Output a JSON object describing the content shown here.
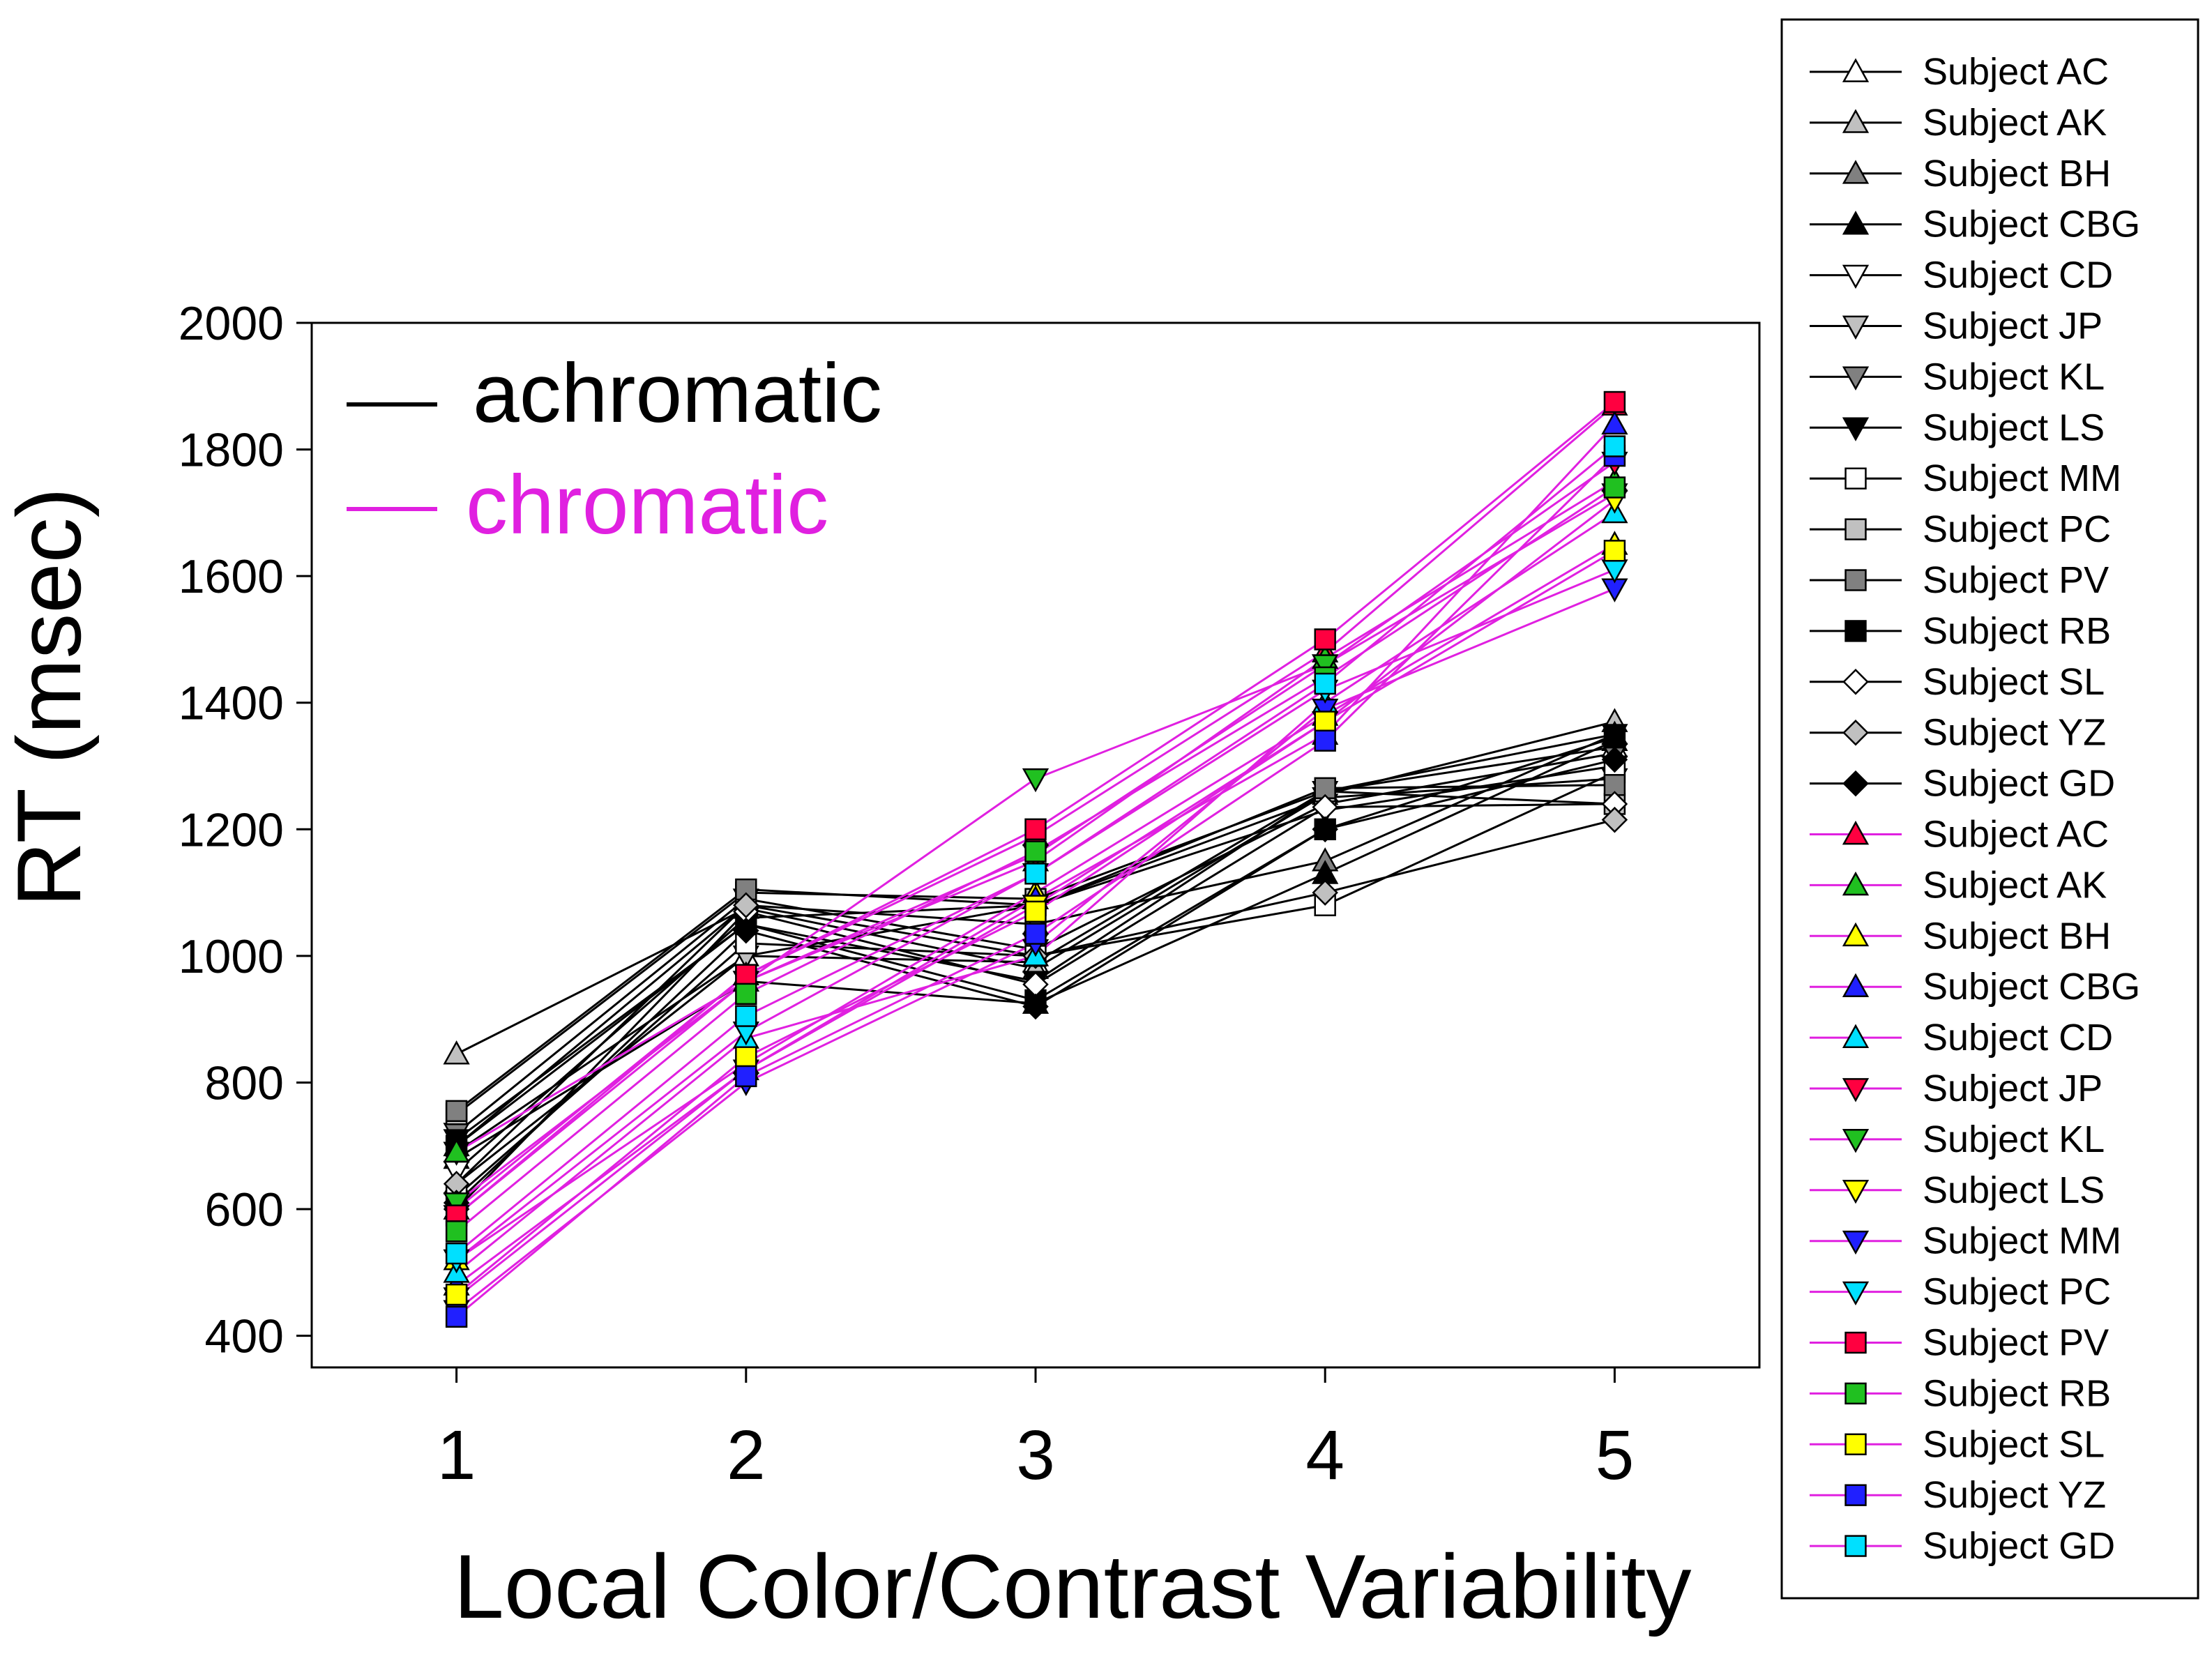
{
  "chart_data": {
    "type": "line",
    "title": "",
    "xlabel": "Local Color/Contrast Variability",
    "ylabel": "RT (msec)",
    "x": [
      1,
      2,
      3,
      4,
      5
    ],
    "xlim": [
      0.5,
      5.5
    ],
    "ylim": [
      350,
      2000
    ],
    "yticks": [
      400,
      600,
      800,
      1000,
      1200,
      1400,
      1600,
      1800,
      2000
    ],
    "xticks": [
      1,
      2,
      3,
      4,
      5
    ],
    "grid": false,
    "groups": [
      {
        "name": "achromatic",
        "color": "#000000"
      },
      {
        "name": "chromatic",
        "color": "#e020e0"
      }
    ],
    "group_legend_position": "top-left",
    "legend_position": "outside-right",
    "series": [
      {
        "name": "Subject AC",
        "group": "achromatic",
        "marker": "triangle-up",
        "fill": "#ffffff",
        "values": [
          640,
          1000,
          990,
          1260,
          1330
        ]
      },
      {
        "name": "Subject AK",
        "group": "achromatic",
        "marker": "triangle-up",
        "fill": "#c0c0c0",
        "values": [
          845,
          1075,
          980,
          1255,
          1370
        ]
      },
      {
        "name": "Subject BH",
        "group": "achromatic",
        "marker": "triangle-up",
        "fill": "#808080",
        "values": [
          700,
          1080,
          1050,
          1150,
          1350
        ]
      },
      {
        "name": "Subject CBG",
        "group": "achromatic",
        "marker": "triangle-up",
        "fill": "#000000",
        "values": [
          680,
          960,
          925,
          1130,
          1340
        ]
      },
      {
        "name": "Subject CD",
        "group": "achromatic",
        "marker": "triangle-down",
        "fill": "#ffffff",
        "values": [
          660,
          1060,
          1080,
          1250,
          1280
        ]
      },
      {
        "name": "Subject JP",
        "group": "achromatic",
        "marker": "triangle-down",
        "fill": "#c0c0c0",
        "values": [
          690,
          1000,
          1080,
          1230,
          1300
        ]
      },
      {
        "name": "Subject KL",
        "group": "achromatic",
        "marker": "triangle-down",
        "fill": "#808080",
        "values": [
          720,
          1090,
          1010,
          1240,
          1320
        ]
      },
      {
        "name": "Subject LS",
        "group": "achromatic",
        "marker": "triangle-down",
        "fill": "#000000",
        "values": [
          710,
          1050,
          960,
          1260,
          1350
        ]
      },
      {
        "name": "Subject MM",
        "group": "achromatic",
        "marker": "square",
        "fill": "#ffffff",
        "values": [
          620,
          1020,
          1000,
          1080,
          1290
        ]
      },
      {
        "name": "Subject PC",
        "group": "achromatic",
        "marker": "square",
        "fill": "#c0c0c0",
        "values": [
          750,
          1100,
          1090,
          1260,
          1240
        ]
      },
      {
        "name": "Subject PV",
        "group": "achromatic",
        "marker": "square",
        "fill": "#808080",
        "values": [
          755,
          1105,
          1080,
          1265,
          1270
        ]
      },
      {
        "name": "Subject RB",
        "group": "achromatic",
        "marker": "square",
        "fill": "#000000",
        "values": [
          700,
          1050,
          930,
          1200,
          1345
        ]
      },
      {
        "name": "Subject SL",
        "group": "achromatic",
        "marker": "diamond",
        "fill": "#ffffff",
        "values": [
          600,
          1070,
          955,
          1235,
          1240
        ]
      },
      {
        "name": "Subject YZ",
        "group": "achromatic",
        "marker": "diamond",
        "fill": "#c0c0c0",
        "values": [
          640,
          1080,
          1000,
          1100,
          1215
        ]
      },
      {
        "name": "Subject GD",
        "group": "achromatic",
        "marker": "diamond",
        "fill": "#000000",
        "values": [
          610,
          1040,
          920,
          1200,
          1310
        ]
      },
      {
        "name": "Subject AC",
        "group": "chromatic",
        "marker": "triangle-up",
        "fill": "#ff0040",
        "values": [
          600,
          970,
          1190,
          1480,
          1870
        ]
      },
      {
        "name": "Subject AK",
        "group": "chromatic",
        "marker": "triangle-up",
        "fill": "#20c020",
        "values": [
          690,
          960,
          1150,
          1470,
          1750
        ]
      },
      {
        "name": "Subject BH",
        "group": "chromatic",
        "marker": "triangle-up",
        "fill": "#ffff00",
        "values": [
          520,
          830,
          1100,
          1380,
          1650
        ]
      },
      {
        "name": "Subject CBG",
        "group": "chromatic",
        "marker": "triangle-up",
        "fill": "#2020ff",
        "values": [
          480,
          820,
          1090,
          1350,
          1840
        ]
      },
      {
        "name": "Subject CD",
        "group": "chromatic",
        "marker": "triangle-up",
        "fill": "#00e0ff",
        "values": [
          500,
          870,
          1000,
          1400,
          1700
        ]
      },
      {
        "name": "Subject JP",
        "group": "chromatic",
        "marker": "triangle-down",
        "fill": "#ff0040",
        "values": [
          590,
          960,
          1160,
          1460,
          1780
        ]
      },
      {
        "name": "Subject KL",
        "group": "chromatic",
        "marker": "triangle-down",
        "fill": "#20c020",
        "values": [
          610,
          960,
          1280,
          1460,
          1730
        ]
      },
      {
        "name": "Subject LS",
        "group": "chromatic",
        "marker": "triangle-down",
        "fill": "#ffff00",
        "values": [
          460,
          820,
          1080,
          1370,
          1720
        ]
      },
      {
        "name": "Subject MM",
        "group": "chromatic",
        "marker": "triangle-down",
        "fill": "#2020ff",
        "values": [
          440,
          800,
          1020,
          1390,
          1580
        ]
      },
      {
        "name": "Subject PC",
        "group": "chromatic",
        "marker": "triangle-down",
        "fill": "#00e0ff",
        "values": [
          520,
          880,
          1130,
          1420,
          1610
        ]
      },
      {
        "name": "Subject PV",
        "group": "chromatic",
        "marker": "square",
        "fill": "#ff0040",
        "values": [
          590,
          970,
          1200,
          1500,
          1875
        ]
      },
      {
        "name": "Subject RB",
        "group": "chromatic",
        "marker": "square",
        "fill": "#20c020",
        "values": [
          565,
          940,
          1165,
          1440,
          1740
        ]
      },
      {
        "name": "Subject SL",
        "group": "chromatic",
        "marker": "square",
        "fill": "#ffff00",
        "values": [
          465,
          840,
          1070,
          1370,
          1640
        ]
      },
      {
        "name": "Subject YZ",
        "group": "chromatic",
        "marker": "square",
        "fill": "#2020ff",
        "values": [
          430,
          810,
          1035,
          1340,
          1790
        ]
      },
      {
        "name": "Subject GD",
        "group": "chromatic",
        "marker": "square",
        "fill": "#00e0ff",
        "values": [
          530,
          905,
          1130,
          1430,
          1805
        ]
      }
    ]
  }
}
